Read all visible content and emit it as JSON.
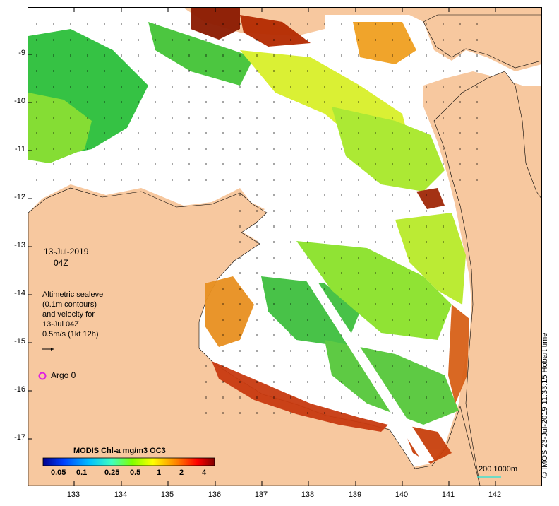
{
  "map": {
    "date": "13-Jul-2019",
    "time": "04Z",
    "legend_lines": [
      "Altimetric sealevel",
      "(0.1m contours)",
      "and velocity for",
      "13-Jul 04Z",
      "0.5m/s (1kt 12h)"
    ],
    "argo_label": "Argo 0",
    "colorbar_title": "MODIS Chl-a mg/m3 OC3",
    "colorbar_ticks": [
      "0.05",
      "0.1",
      "0.25",
      "0.5",
      "1",
      "2",
      "4"
    ],
    "scale_label": "200  1000m",
    "credit": "© IMOS 23-Jul-2019 11:33:15 Hobart time",
    "lat_ticks": [
      "-9",
      "-10",
      "-11",
      "-12",
      "-13",
      "-14",
      "-15",
      "-16",
      "-17"
    ],
    "lon_ticks": [
      "133",
      "134",
      "135",
      "136",
      "137",
      "138",
      "139",
      "140",
      "141",
      "142"
    ],
    "colors": {
      "land": "#f7c89f",
      "argo": "#e020e0",
      "scale_bar": "#40e0d0",
      "chl_colormap": [
        "#00008f",
        "#0040ff",
        "#00bfff",
        "#3fffbf",
        "#80ff00",
        "#ffff00",
        "#ff8000",
        "#ff0000",
        "#800000"
      ]
    }
  }
}
